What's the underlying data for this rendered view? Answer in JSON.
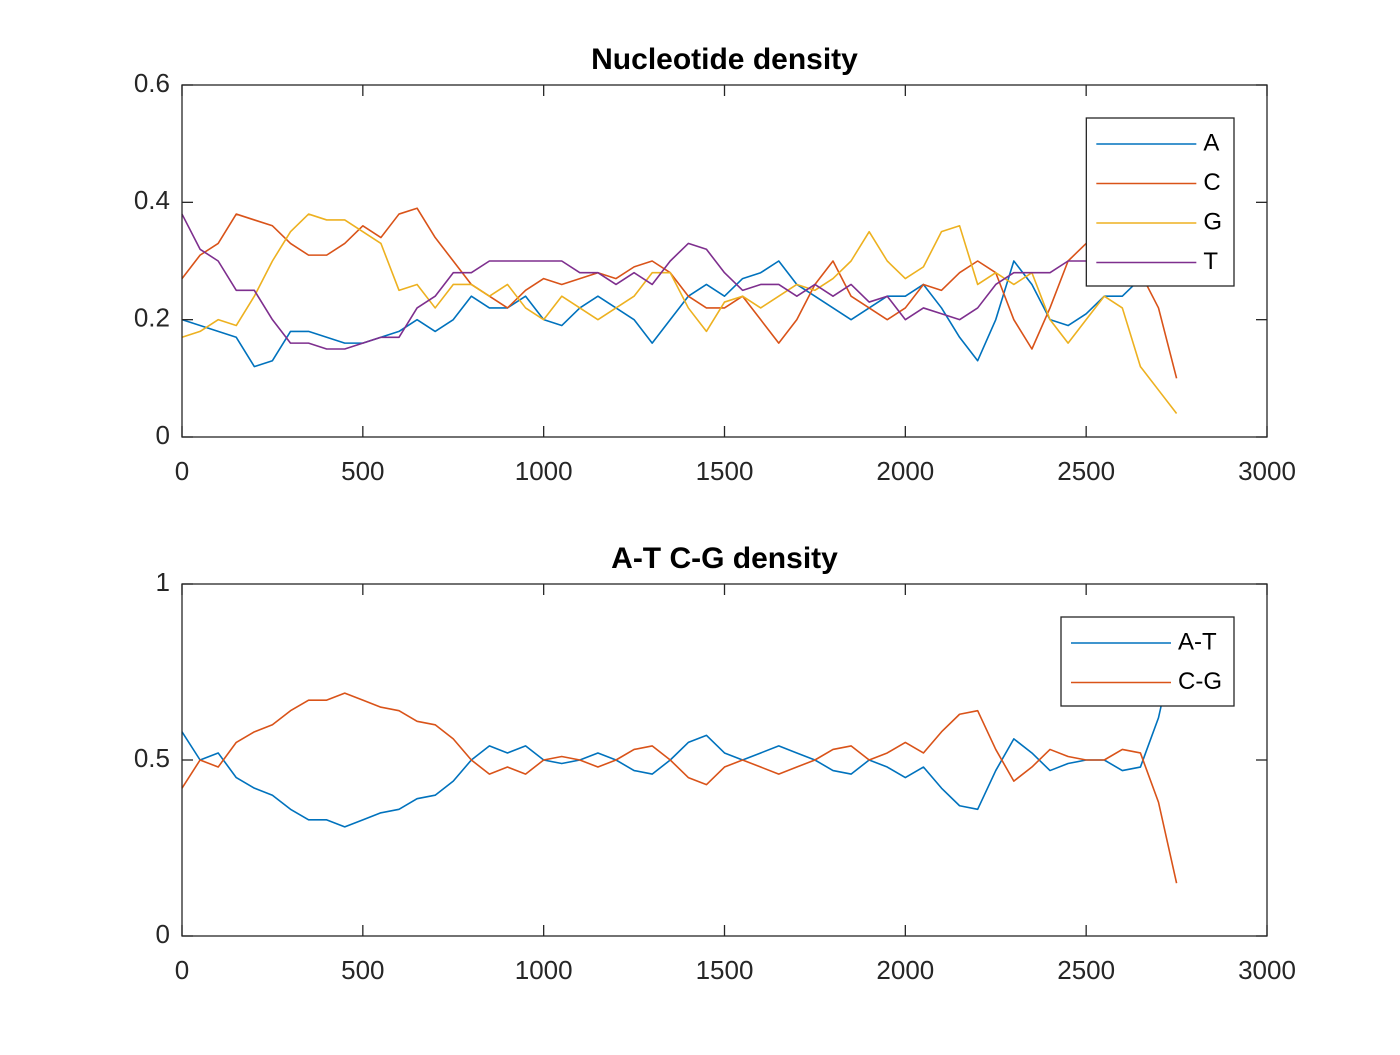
{
  "chart_data": [
    {
      "type": "line",
      "title": "Nucleotide density",
      "x": [
        0,
        50,
        100,
        150,
        200,
        250,
        300,
        350,
        400,
        450,
        500,
        550,
        600,
        650,
        700,
        750,
        800,
        850,
        900,
        950,
        1000,
        1050,
        1100,
        1150,
        1200,
        1250,
        1300,
        1350,
        1400,
        1450,
        1500,
        1550,
        1600,
        1650,
        1700,
        1750,
        1800,
        1850,
        1900,
        1950,
        2000,
        2050,
        2100,
        2150,
        2200,
        2250,
        2300,
        2350,
        2400,
        2450,
        2500,
        2550,
        2600,
        2650,
        2700,
        2750
      ],
      "series": [
        {
          "name": "A",
          "color": "#0072bd",
          "values": [
            0.2,
            0.19,
            0.18,
            0.17,
            0.12,
            0.13,
            0.18,
            0.18,
            0.17,
            0.16,
            0.16,
            0.17,
            0.18,
            0.2,
            0.18,
            0.2,
            0.24,
            0.22,
            0.22,
            0.24,
            0.2,
            0.19,
            0.22,
            0.24,
            0.22,
            0.2,
            0.16,
            0.2,
            0.24,
            0.26,
            0.24,
            0.27,
            0.28,
            0.3,
            0.26,
            0.24,
            0.22,
            0.2,
            0.22,
            0.24,
            0.24,
            0.26,
            0.22,
            0.17,
            0.13,
            0.2,
            0.3,
            0.26,
            0.2,
            0.19,
            0.21,
            0.24,
            0.24,
            0.27,
            0.32,
            0.4
          ]
        },
        {
          "name": "C",
          "color": "#d95319",
          "values": [
            0.27,
            0.31,
            0.33,
            0.38,
            0.37,
            0.36,
            0.33,
            0.31,
            0.31,
            0.33,
            0.36,
            0.34,
            0.38,
            0.39,
            0.34,
            0.3,
            0.26,
            0.24,
            0.22,
            0.25,
            0.27,
            0.26,
            0.27,
            0.28,
            0.27,
            0.29,
            0.3,
            0.28,
            0.24,
            0.22,
            0.22,
            0.24,
            0.2,
            0.16,
            0.2,
            0.26,
            0.3,
            0.24,
            0.22,
            0.2,
            0.22,
            0.26,
            0.25,
            0.28,
            0.3,
            0.28,
            0.2,
            0.15,
            0.22,
            0.3,
            0.33,
            0.28,
            0.28,
            0.28,
            0.22,
            0.1
          ]
        },
        {
          "name": "G",
          "color": "#edb120",
          "values": [
            0.17,
            0.18,
            0.2,
            0.19,
            0.24,
            0.3,
            0.35,
            0.38,
            0.37,
            0.37,
            0.35,
            0.33,
            0.25,
            0.26,
            0.22,
            0.26,
            0.26,
            0.24,
            0.26,
            0.22,
            0.2,
            0.24,
            0.22,
            0.2,
            0.22,
            0.24,
            0.28,
            0.28,
            0.22,
            0.18,
            0.23,
            0.24,
            0.22,
            0.24,
            0.26,
            0.25,
            0.27,
            0.3,
            0.35,
            0.3,
            0.27,
            0.29,
            0.35,
            0.36,
            0.26,
            0.28,
            0.26,
            0.28,
            0.2,
            0.16,
            0.2,
            0.24,
            0.22,
            0.12,
            0.08,
            0.04
          ]
        },
        {
          "name": "T",
          "color": "#7e2f8e",
          "values": [
            0.38,
            0.32,
            0.3,
            0.25,
            0.25,
            0.2,
            0.16,
            0.16,
            0.15,
            0.15,
            0.16,
            0.17,
            0.17,
            0.22,
            0.24,
            0.28,
            0.28,
            0.3,
            0.3,
            0.3,
            0.3,
            0.3,
            0.28,
            0.28,
            0.26,
            0.28,
            0.26,
            0.3,
            0.33,
            0.32,
            0.28,
            0.25,
            0.26,
            0.26,
            0.24,
            0.26,
            0.24,
            0.26,
            0.23,
            0.24,
            0.2,
            0.22,
            0.21,
            0.2,
            0.22,
            0.26,
            0.28,
            0.28,
            0.28,
            0.3,
            0.3,
            0.32,
            0.3,
            0.33,
            0.38,
            0.45
          ]
        }
      ],
      "xlim": [
        0,
        3000
      ],
      "xticks": [
        0,
        500,
        1000,
        1500,
        2000,
        2500,
        3000
      ],
      "ylim": [
        0,
        0.6
      ],
      "yticks": [
        0,
        0.2,
        0.4,
        0.6
      ],
      "legend": "northeast"
    },
    {
      "type": "line",
      "title": "A-T C-G density",
      "x": [
        0,
        50,
        100,
        150,
        200,
        250,
        300,
        350,
        400,
        450,
        500,
        550,
        600,
        650,
        700,
        750,
        800,
        850,
        900,
        950,
        1000,
        1050,
        1100,
        1150,
        1200,
        1250,
        1300,
        1350,
        1400,
        1450,
        1500,
        1550,
        1600,
        1650,
        1700,
        1750,
        1800,
        1850,
        1900,
        1950,
        2000,
        2050,
        2100,
        2150,
        2200,
        2250,
        2300,
        2350,
        2400,
        2450,
        2500,
        2550,
        2600,
        2650,
        2700,
        2750
      ],
      "series": [
        {
          "name": "A-T",
          "color": "#0072bd",
          "values": [
            0.58,
            0.5,
            0.52,
            0.45,
            0.42,
            0.4,
            0.36,
            0.33,
            0.33,
            0.31,
            0.33,
            0.35,
            0.36,
            0.39,
            0.4,
            0.44,
            0.5,
            0.54,
            0.52,
            0.54,
            0.5,
            0.49,
            0.5,
            0.52,
            0.5,
            0.47,
            0.46,
            0.5,
            0.55,
            0.57,
            0.52,
            0.5,
            0.52,
            0.54,
            0.52,
            0.5,
            0.47,
            0.46,
            0.5,
            0.48,
            0.45,
            0.48,
            0.42,
            0.37,
            0.36,
            0.47,
            0.56,
            0.52,
            0.47,
            0.49,
            0.5,
            0.5,
            0.47,
            0.48,
            0.62,
            0.85
          ]
        },
        {
          "name": "C-G",
          "color": "#d95319",
          "values": [
            0.42,
            0.5,
            0.48,
            0.55,
            0.58,
            0.6,
            0.64,
            0.67,
            0.67,
            0.69,
            0.67,
            0.65,
            0.64,
            0.61,
            0.6,
            0.56,
            0.5,
            0.46,
            0.48,
            0.46,
            0.5,
            0.51,
            0.5,
            0.48,
            0.5,
            0.53,
            0.54,
            0.5,
            0.45,
            0.43,
            0.48,
            0.5,
            0.48,
            0.46,
            0.48,
            0.5,
            0.53,
            0.54,
            0.5,
            0.52,
            0.55,
            0.52,
            0.58,
            0.63,
            0.64,
            0.53,
            0.44,
            0.48,
            0.53,
            0.51,
            0.5,
            0.5,
            0.53,
            0.52,
            0.38,
            0.15
          ]
        }
      ],
      "xlim": [
        0,
        3000
      ],
      "xticks": [
        0,
        500,
        1000,
        1500,
        2000,
        2500,
        3000
      ],
      "ylim": [
        0,
        1
      ],
      "yticks": [
        0,
        0.5,
        1
      ],
      "legend": "northeast"
    }
  ]
}
